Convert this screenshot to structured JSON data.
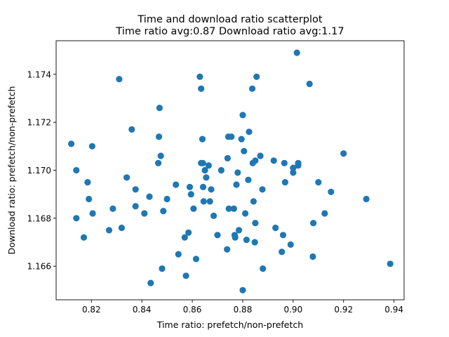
{
  "chart_data": {
    "type": "scatter",
    "title": "Time and download ratio scatterplot",
    "subtitle": "Time ratio avg:0.87 Download ratio avg:1.17",
    "xlabel": "Time ratio: prefetch/non-prefetch",
    "ylabel": "Download ratio: prefetch/non-prefetch",
    "xlim": [
      0.806,
      0.944
    ],
    "ylim": [
      1.1646,
      1.1754
    ],
    "xticks": [
      "0.82",
      "0.84",
      "0.86",
      "0.88",
      "0.90",
      "0.92",
      "0.94"
    ],
    "yticks": [
      "1.166",
      "1.168",
      "1.170",
      "1.172",
      "1.174"
    ],
    "grid": false,
    "color": "#1f77b4",
    "points": [
      [
        0.812,
        1.1711
      ],
      [
        0.814,
        1.17
      ],
      [
        0.814,
        1.168
      ],
      [
        0.817,
        1.1672
      ],
      [
        0.8185,
        1.1695
      ],
      [
        0.819,
        1.1688
      ],
      [
        0.8203,
        1.171
      ],
      [
        0.8205,
        1.1682
      ],
      [
        0.827,
        1.1675
      ],
      [
        0.8285,
        1.1684
      ],
      [
        0.831,
        1.1738
      ],
      [
        0.832,
        1.1676
      ],
      [
        0.834,
        1.1697
      ],
      [
        0.836,
        1.1717
      ],
      [
        0.8375,
        1.1692
      ],
      [
        0.8375,
        1.1685
      ],
      [
        0.841,
        1.1682
      ],
      [
        0.843,
        1.1689
      ],
      [
        0.8435,
        1.1653
      ],
      [
        0.8465,
        1.1703
      ],
      [
        0.8468,
        1.1714
      ],
      [
        0.847,
        1.1726
      ],
      [
        0.8475,
        1.1706
      ],
      [
        0.848,
        1.1659
      ],
      [
        0.8485,
        1.1683
      ],
      [
        0.85,
        1.1688
      ],
      [
        0.8535,
        1.1694
      ],
      [
        0.8545,
        1.1665
      ],
      [
        0.857,
        1.1672
      ],
      [
        0.8575,
        1.1656
      ],
      [
        0.8585,
        1.1674
      ],
      [
        0.859,
        1.1693
      ],
      [
        0.8595,
        1.169
      ],
      [
        0.8605,
        1.1684
      ],
      [
        0.8615,
        1.1663
      ],
      [
        0.863,
        1.1739
      ],
      [
        0.8635,
        1.1734
      ],
      [
        0.8635,
        1.1703
      ],
      [
        0.864,
        1.1713
      ],
      [
        0.8642,
        1.1703
      ],
      [
        0.8643,
        1.1693
      ],
      [
        0.8645,
        1.1687
      ],
      [
        0.865,
        1.17
      ],
      [
        0.8655,
        1.1697
      ],
      [
        0.8665,
        1.1702
      ],
      [
        0.867,
        1.1687
      ],
      [
        0.8675,
        1.1692
      ],
      [
        0.8685,
        1.1681
      ],
      [
        0.87,
        1.1673
      ],
      [
        0.8715,
        1.17
      ],
      [
        0.8738,
        1.1667
      ],
      [
        0.874,
        1.1705
      ],
      [
        0.8743,
        1.1714
      ],
      [
        0.8745,
        1.1684
      ],
      [
        0.8755,
        1.1714
      ],
      [
        0.8765,
        1.1684
      ],
      [
        0.8768,
        1.1673
      ],
      [
        0.877,
        1.1672
      ],
      [
        0.8775,
        1.1694
      ],
      [
        0.878,
        1.1699
      ],
      [
        0.8785,
        1.1675
      ],
      [
        0.8795,
        1.1713
      ],
      [
        0.88,
        1.1723
      ],
      [
        0.88,
        1.165
      ],
      [
        0.8805,
        1.1708
      ],
      [
        0.881,
        1.1682
      ],
      [
        0.8815,
        1.1671
      ],
      [
        0.8822,
        1.1696
      ],
      [
        0.8825,
        1.1716
      ],
      [
        0.8838,
        1.1734
      ],
      [
        0.884,
        1.1703
      ],
      [
        0.8843,
        1.1687
      ],
      [
        0.8848,
        1.167
      ],
      [
        0.885,
        1.1678
      ],
      [
        0.885,
        1.1704
      ],
      [
        0.8855,
        1.1739
      ],
      [
        0.887,
        1.1706
      ],
      [
        0.8878,
        1.1692
      ],
      [
        0.888,
        1.1659
      ],
      [
        0.8923,
        1.1704
      ],
      [
        0.893,
        1.1676
      ],
      [
        0.8955,
        1.1666
      ],
      [
        0.896,
        1.1673
      ],
      [
        0.8965,
        1.1703
      ],
      [
        0.8968,
        1.1695
      ],
      [
        0.899,
        1.1669
      ],
      [
        0.9,
        1.1701
      ],
      [
        0.9,
        1.1699
      ],
      [
        0.9015,
        1.1749
      ],
      [
        0.902,
        1.1703
      ],
      [
        0.902,
        1.1702
      ],
      [
        0.9065,
        1.1736
      ],
      [
        0.9078,
        1.1664
      ],
      [
        0.908,
        1.1678
      ],
      [
        0.91,
        1.1695
      ],
      [
        0.9125,
        1.1682
      ],
      [
        0.915,
        1.1691
      ],
      [
        0.92,
        1.1707
      ],
      [
        0.929,
        1.1688
      ],
      [
        0.9385,
        1.1661
      ]
    ]
  }
}
